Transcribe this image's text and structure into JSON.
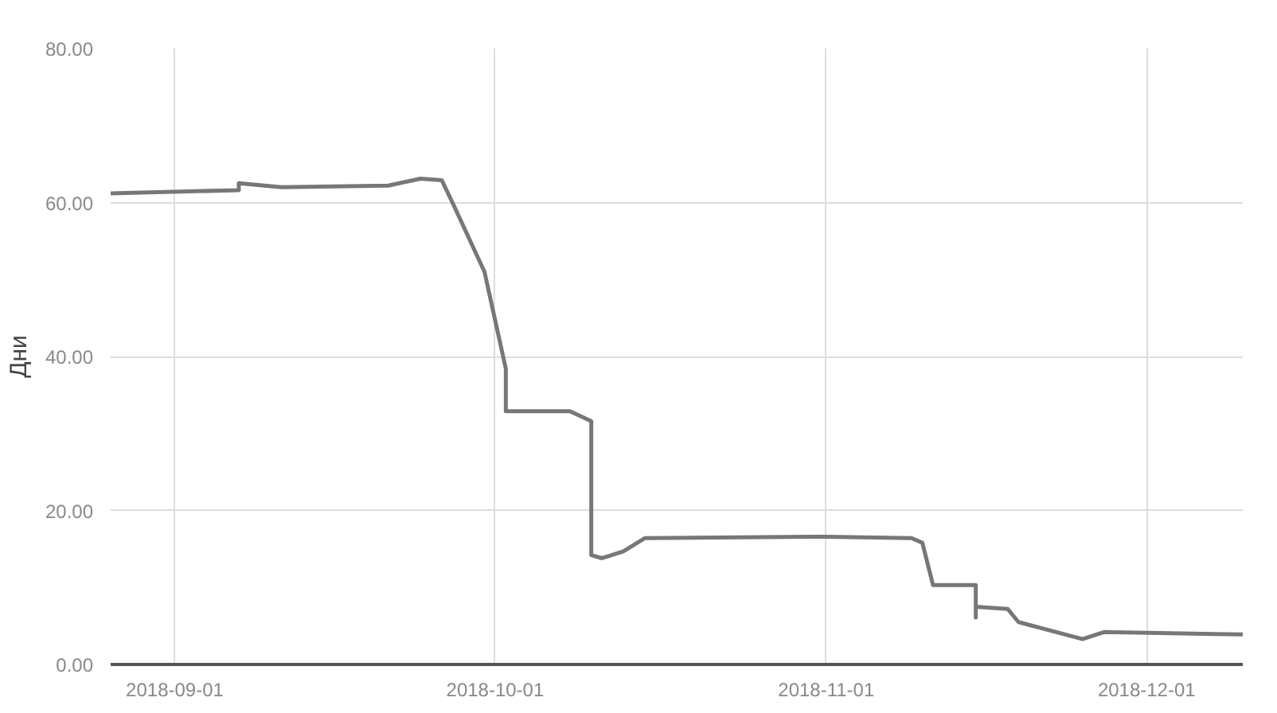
{
  "chart_data": {
    "type": "line",
    "ylabel": "Дни",
    "xlim": [
      "2018-08-26",
      "2018-12-10"
    ],
    "ylim": [
      0,
      80
    ],
    "xticks": [
      "2018-09-01",
      "2018-10-01",
      "2018-11-01",
      "2018-12-01"
    ],
    "yticks": [
      {
        "value": 0,
        "label": "0.00"
      },
      {
        "value": 20,
        "label": "20.00"
      },
      {
        "value": 40,
        "label": "40.00"
      },
      {
        "value": 60,
        "label": "60.00"
      },
      {
        "value": 80,
        "label": "80.00"
      }
    ],
    "grid": true,
    "marker": "none",
    "line_style": "solid",
    "x": [
      "2018-08-26",
      "2018-09-07",
      "2018-09-07",
      "2018-09-11",
      "2018-09-21",
      "2018-09-24",
      "2018-09-26",
      "2018-09-27",
      "2018-09-30",
      "2018-10-02",
      "2018-10-02",
      "2018-10-08",
      "2018-10-10",
      "2018-10-10",
      "2018-10-11",
      "2018-10-13",
      "2018-10-15",
      "2018-11-01",
      "2018-11-09",
      "2018-11-10",
      "2018-11-11",
      "2018-11-15",
      "2018-11-15",
      "2018-11-15",
      "2018-11-18",
      "2018-11-19",
      "2018-11-25",
      "2018-11-27",
      "2018-12-10"
    ],
    "series": [
      {
        "color": "#777777",
        "values": [
          61.2,
          61.6,
          62.5,
          62.0,
          62.2,
          63.1,
          62.9,
          60.0,
          51.0,
          38.4,
          32.9,
          32.9,
          31.6,
          14.2,
          13.8,
          14.7,
          16.4,
          16.6,
          16.4,
          15.8,
          10.3,
          10.3,
          6.1,
          7.5,
          7.2,
          5.5,
          3.3,
          4.2,
          3.9
        ]
      }
    ]
  }
}
